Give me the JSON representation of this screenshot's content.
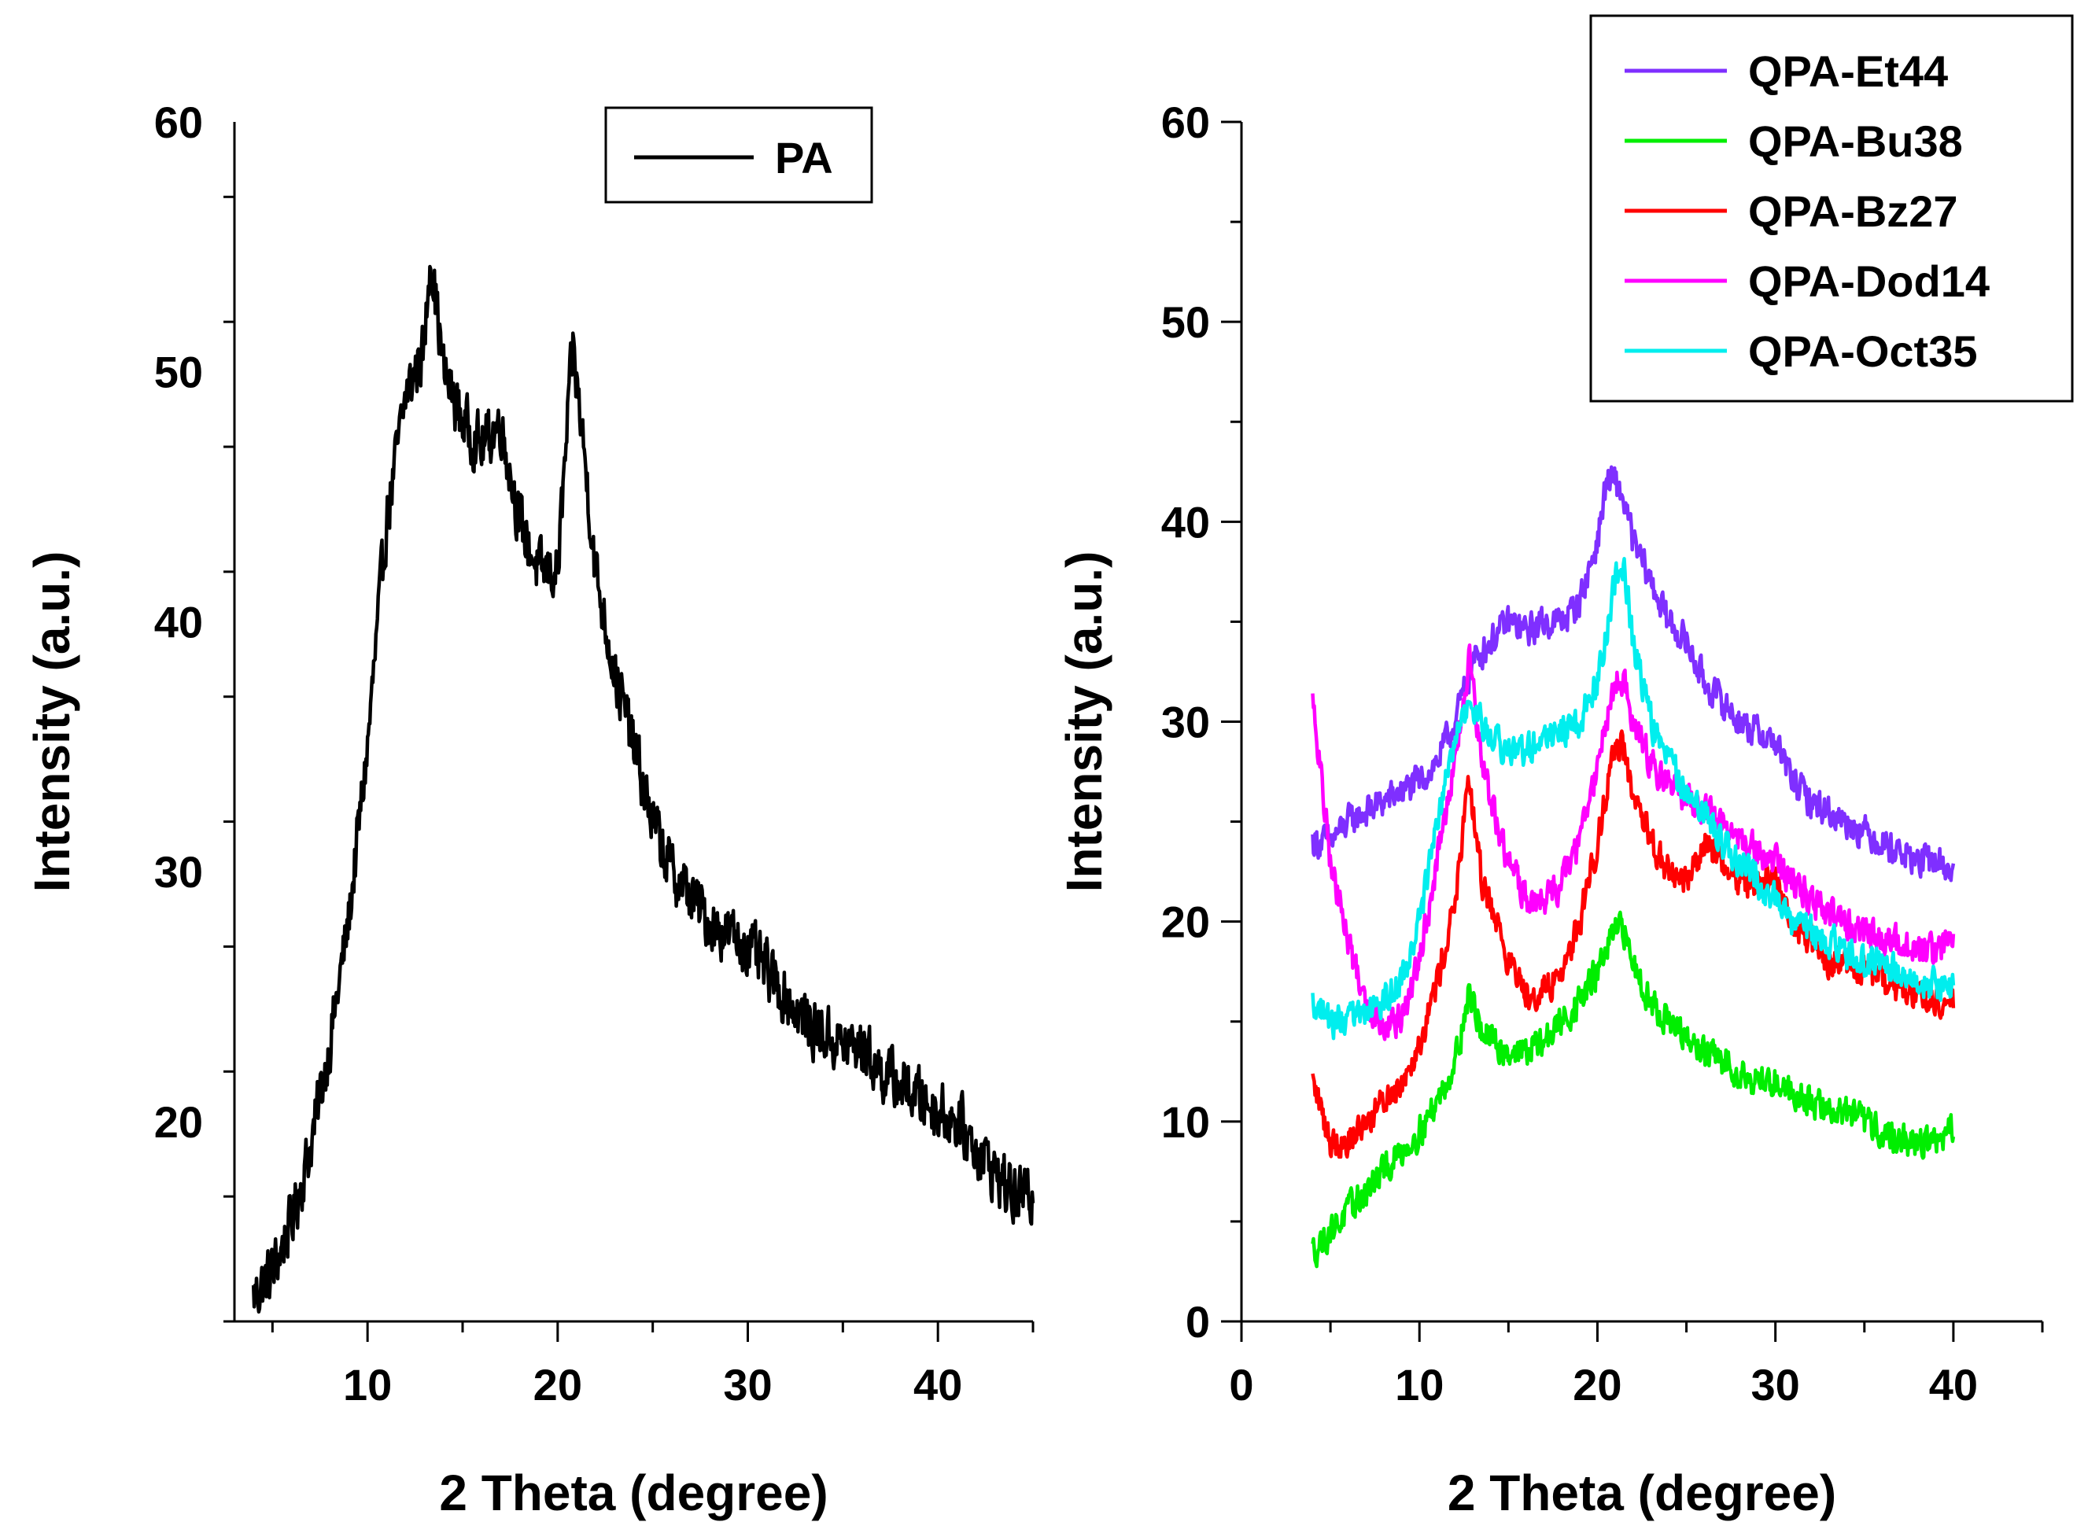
{
  "chart_data": [
    {
      "type": "line",
      "title": "",
      "xlabel": "2 Theta (degree)",
      "ylabel": "Intensity (a.u.)",
      "xlim": [
        3,
        45
      ],
      "ylim": [
        12,
        60
      ],
      "xticks": [
        10,
        20,
        30,
        40
      ],
      "yticks": [
        20,
        30,
        40,
        50,
        60
      ],
      "xtick_labels": [
        "10",
        "20",
        "30",
        "40"
      ],
      "ytick_labels": [
        "20",
        "30",
        "40",
        "50",
        "60"
      ],
      "legend": {
        "position": "top-right",
        "entries": [
          "PA"
        ]
      },
      "series": [
        {
          "name": "PA",
          "color": "#000000",
          "x": [
            4,
            5,
            6,
            7,
            8,
            9,
            10,
            11,
            12,
            13,
            13.3,
            14,
            15,
            16,
            17,
            18,
            19,
            20,
            20.8,
            21.5,
            22,
            23,
            24,
            25,
            26,
            27,
            28,
            29,
            30,
            31,
            32,
            33,
            34,
            35,
            36,
            37,
            38,
            39,
            40,
            41,
            42,
            43,
            44,
            45
          ],
          "y": [
            13,
            14,
            16,
            19,
            23,
            28,
            35,
            44,
            49,
            51,
            55,
            50,
            48,
            47,
            48,
            44,
            42,
            42,
            51,
            46,
            42,
            38,
            35,
            32,
            30,
            29,
            28,
            27.5,
            27,
            26,
            25,
            24,
            23.5,
            23,
            23,
            22,
            21.5,
            21,
            20.5,
            20,
            19,
            18,
            17,
            17
          ]
        }
      ]
    },
    {
      "type": "line",
      "title": "",
      "xlabel": "2 Theta (degree)",
      "ylabel": "Intensity (a.u.)",
      "xlim": [
        0,
        45
      ],
      "ylim": [
        0,
        60
      ],
      "xticks": [
        0,
        10,
        20,
        30,
        40
      ],
      "yticks": [
        0,
        10,
        20,
        30,
        40,
        50,
        60
      ],
      "xtick_labels": [
        "0",
        "10",
        "20",
        "30",
        "40"
      ],
      "ytick_labels": [
        "0",
        "10",
        "20",
        "30",
        "40",
        "50",
        "60"
      ],
      "legend": {
        "position": "top-right",
        "entries": [
          "QPA-Et44",
          "QPA-Bu38",
          "QPA-Bz27",
          "QPA-Dod14",
          "QPA-Oct35"
        ]
      },
      "series": [
        {
          "name": "QPA-Et44",
          "color": "#7f2fff",
          "x": [
            4,
            5,
            6,
            7,
            8,
            9,
            10,
            11,
            12,
            13,
            14,
            15,
            16,
            17,
            18,
            19,
            20,
            20.5,
            21,
            21.5,
            22,
            23,
            24,
            25,
            26,
            27,
            28,
            29,
            30,
            31,
            32,
            33,
            34,
            35,
            36,
            37,
            38,
            39,
            40
          ],
          "y": [
            24,
            24,
            25,
            25.5,
            26,
            26.5,
            27,
            28,
            30,
            33,
            34,
            35,
            34.5,
            35,
            35,
            36,
            39,
            42,
            42,
            41,
            39,
            37,
            35,
            34,
            32,
            31,
            30,
            29.5,
            29,
            27,
            26,
            25.5,
            25,
            24.5,
            24,
            23.5,
            23,
            23,
            22.5
          ]
        },
        {
          "name": "QPA-Bu38",
          "color": "#00ee00",
          "x": [
            4,
            5,
            6,
            7,
            8,
            9,
            10,
            11,
            12,
            12.8,
            13.5,
            14,
            15,
            16,
            17,
            18,
            19,
            20,
            21,
            21.5,
            22,
            23,
            24,
            25,
            26,
            27,
            28,
            29,
            30,
            31,
            32,
            33,
            34,
            35,
            36,
            37,
            38,
            39,
            40
          ],
          "y": [
            3.5,
            4.5,
            5.5,
            6.5,
            7.5,
            8.5,
            9.5,
            11,
            13,
            16.5,
            14.5,
            14,
            13.5,
            13.5,
            14,
            15,
            16,
            17.5,
            19.5,
            19.5,
            18,
            16,
            15,
            14,
            13.5,
            13,
            12.5,
            12,
            12,
            11.5,
            11,
            10.5,
            10.5,
            10,
            9.5,
            9,
            9,
            9,
            9.5
          ]
        },
        {
          "name": "QPA-Bz27",
          "color": "#ff0000",
          "x": [
            4,
            5,
            6,
            7,
            8,
            9,
            10,
            11,
            12,
            12.8,
            13.5,
            14,
            15,
            16,
            17,
            18,
            19,
            20,
            21,
            21.5,
            22,
            23,
            24,
            25,
            26,
            27,
            28,
            29,
            30,
            31,
            32,
            33,
            34,
            35,
            36,
            37,
            38,
            39,
            40
          ],
          "y": [
            12,
            9,
            9,
            10,
            11,
            12,
            14,
            17,
            21,
            27,
            22,
            21,
            18,
            16.5,
            16.5,
            17.5,
            20,
            24,
            29,
            28.5,
            26,
            24,
            22.5,
            22,
            24,
            23,
            22,
            22,
            22,
            20,
            19,
            18,
            18,
            17.5,
            17,
            16.5,
            16.5,
            16,
            16
          ]
        },
        {
          "name": "QPA-Dod14",
          "color": "#ff00ff",
          "x": [
            4,
            5,
            6,
            7,
            8,
            9,
            10,
            11,
            12,
            12.8,
            13.5,
            14,
            15,
            16,
            17,
            18,
            19,
            20,
            21,
            21.5,
            22,
            23,
            24,
            25,
            26,
            27,
            28,
            29,
            30,
            31,
            32,
            33,
            34,
            35,
            36,
            37,
            38,
            39,
            40
          ],
          "y": [
            31,
            23,
            19,
            16,
            15,
            15,
            18,
            23,
            28,
            33,
            28,
            26,
            23,
            21,
            21,
            22,
            24,
            28,
            32,
            32,
            30,
            28,
            27,
            26,
            25.5,
            25,
            24,
            23.5,
            23,
            22,
            21,
            20.5,
            20,
            19.5,
            19,
            19,
            18.5,
            18.5,
            19
          ]
        },
        {
          "name": "QPA-Oct35",
          "color": "#00eeee",
          "x": [
            4,
            5,
            6,
            7,
            8,
            9,
            10,
            11,
            12,
            13,
            14,
            15,
            16,
            17,
            18,
            19,
            20,
            21,
            21.5,
            22,
            23,
            24,
            25,
            26,
            27,
            28,
            29,
            30,
            31,
            32,
            33,
            34,
            35,
            36,
            37,
            38,
            39,
            40
          ],
          "y": [
            16,
            15,
            15,
            15.5,
            16,
            17,
            20,
            25,
            29,
            31,
            29,
            28.5,
            28.5,
            29,
            29.5,
            30,
            32,
            37,
            38,
            34,
            30,
            28,
            26.5,
            25.5,
            24,
            23,
            22,
            21,
            20,
            19.5,
            19,
            18.5,
            18,
            18,
            17.5,
            17,
            17,
            16.5
          ]
        }
      ]
    }
  ]
}
